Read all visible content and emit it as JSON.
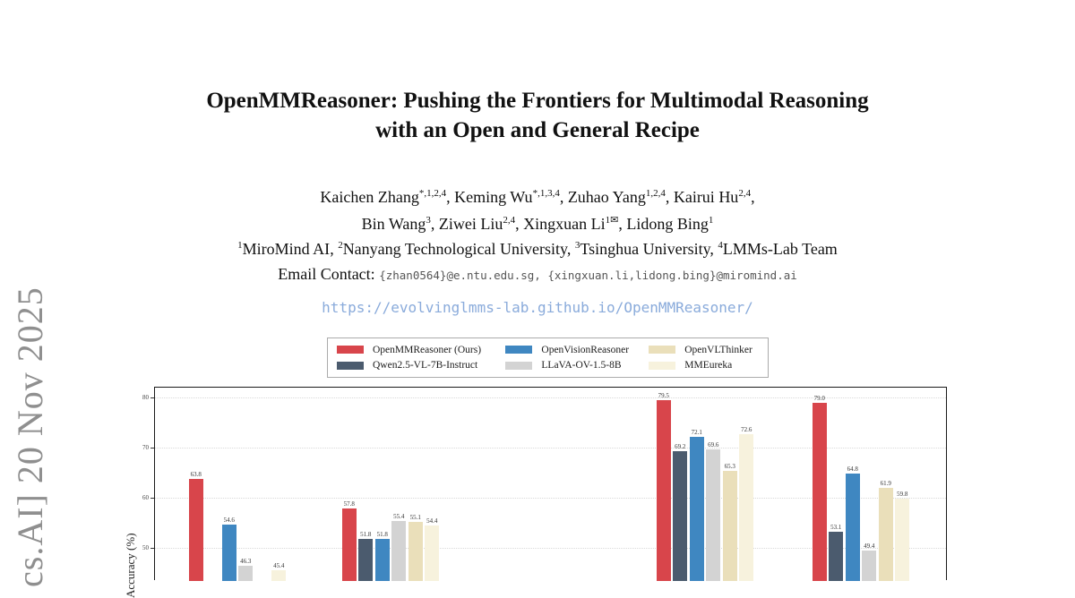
{
  "watermark": {
    "text": "cs.AI] 20 Nov 2025"
  },
  "paper": {
    "title_line1": "OpenMMReasoner: Pushing the Frontiers for Multimodal Reasoning",
    "title_line2": "with an Open and General Recipe",
    "authors_line1": [
      {
        "name": "Kaichen Zhang",
        "sup": "*,1,2,4",
        "sep": ", "
      },
      {
        "name": "Keming Wu",
        "sup": "*,1,3,4",
        "sep": ", "
      },
      {
        "name": "Zuhao Yang",
        "sup": "1,2,4",
        "sep": ", "
      },
      {
        "name": "Kairui Hu",
        "sup": "2,4",
        "sep": ","
      }
    ],
    "authors_line2": [
      {
        "name": "Bin Wang",
        "sup": "3",
        "sep": ", "
      },
      {
        "name": "Ziwei Liu",
        "sup": "2,4",
        "sep": ", "
      },
      {
        "name": "Xingxuan Li",
        "sup": "1✉",
        "sep": ", "
      },
      {
        "name": "Lidong Bing",
        "sup": "1",
        "sep": ""
      }
    ],
    "affiliations": [
      {
        "sup": "1",
        "name": "MiroMind AI",
        "sep": ", "
      },
      {
        "sup": "2",
        "name": "Nanyang Technological University",
        "sep": ", "
      },
      {
        "sup": "3",
        "name": "Tsinghua University",
        "sep": ", "
      },
      {
        "sup": "4",
        "name": "LMMs-Lab Team",
        "sep": ""
      }
    ],
    "email_label": "Email Contact:",
    "email_value": "{zhan0564}@e.ntu.edu.sg, {xingxuan.li,lidong.bing}@miromind.ai",
    "project_url": "https://evolvinglmms-lab.github.io/OpenMMReasoner/"
  },
  "chart_data": {
    "type": "bar",
    "title": "",
    "xlabel": "",
    "ylabel": "Accuracy (%)",
    "yticks": [
      80,
      70,
      60,
      50
    ],
    "grid": true,
    "legend_position": "top",
    "categories": [
      "",
      "",
      "",
      ""
    ],
    "series": [
      {
        "name": "OpenMMReasoner (Ours)",
        "color": "#d8454b",
        "values": [
          63.8,
          57.8,
          79.5,
          79.0
        ]
      },
      {
        "name": "Qwen2.5-VL-7B-Instruct",
        "color": "#4b5b6e",
        "values": [
          null,
          51.8,
          69.2,
          53.1
        ]
      },
      {
        "name": "OpenVisionReasoner",
        "color": "#3f87c1",
        "values": [
          54.6,
          51.8,
          72.1,
          64.8
        ]
      },
      {
        "name": "LLaVA-OV-1.5-8B",
        "color": "#d3d3d3",
        "values": [
          46.3,
          55.4,
          69.6,
          49.4
        ]
      },
      {
        "name": "OpenVLThinker",
        "color": "#eadfba",
        "values": [
          null,
          55.1,
          65.3,
          61.9
        ]
      },
      {
        "name": "MMEureka",
        "color": "#f7f2dd",
        "values": [
          45.4,
          54.4,
          72.6,
          59.8
        ]
      }
    ],
    "legend_display_order": [
      0,
      2,
      4,
      1,
      3,
      5
    ]
  }
}
